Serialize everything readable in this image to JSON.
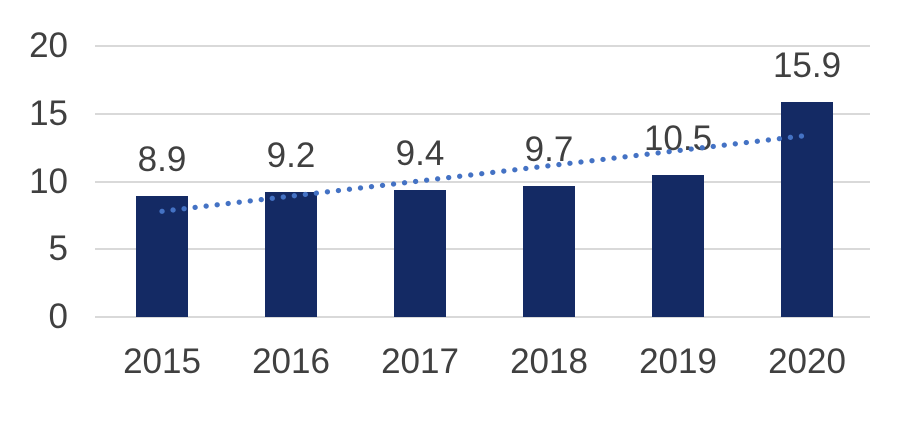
{
  "chart_data": {
    "type": "bar",
    "title": "",
    "xlabel": "",
    "ylabel": "",
    "categories": [
      "2015",
      "2016",
      "2017",
      "2018",
      "2019",
      "2020"
    ],
    "series": [
      {
        "name": "value",
        "values": [
          8.9,
          9.2,
          9.4,
          9.7,
          10.5,
          15.9
        ]
      }
    ],
    "data_labels": [
      "8.9",
      "9.2",
      "9.4",
      "9.7",
      "10.5",
      "15.9"
    ],
    "y_ticks": [
      "0",
      "5",
      "10",
      "15",
      "20"
    ],
    "ylim": [
      0,
      20
    ],
    "grid": "horizontal",
    "legend": "none",
    "trendline": {
      "type": "linear",
      "style": "dotted",
      "start_value": 7.8,
      "end_value": 13.4
    },
    "colors": {
      "bar": "#142A64",
      "trendline": "#4472C4",
      "gridline": "#D9D9D9",
      "axis_text": "#404040",
      "data_label_text": "#404040",
      "background": "#FFFFFF"
    }
  }
}
